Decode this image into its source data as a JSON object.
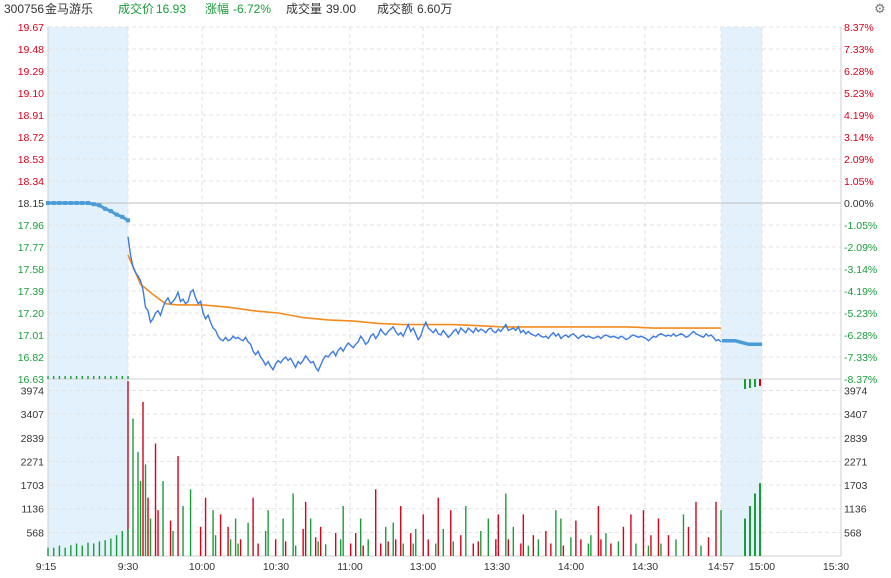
{
  "header": {
    "code": "300756",
    "name": "金马游乐",
    "price_label": "成交价",
    "price": "16.93",
    "change_label": "涨幅",
    "change": "-6.72%",
    "volume_label": "成交量",
    "volume": "39.00",
    "amount_label": "成交额",
    "amount": "6.60万"
  },
  "icons": {
    "settings": "gear-icon"
  },
  "colors": {
    "up": "#d9001b",
    "down": "#1a9c3a",
    "price_line": "#3d7be0",
    "avg_line": "#f28c1e",
    "auction_band": "#e3f1fd",
    "auction_line": "#4b9bd6",
    "grid": "#e2e2e2"
  },
  "chart_data": {
    "type": "line",
    "price_axis": {
      "ticks": [
        "19.67",
        "19.48",
        "19.29",
        "19.10",
        "18.91",
        "18.72",
        "18.53",
        "18.34",
        "18.15",
        "17.96",
        "17.77",
        "17.58",
        "17.39",
        "17.20",
        "17.01",
        "16.82",
        "16.63"
      ],
      "range": [
        16.63,
        19.67
      ],
      "prev_close": 18.15
    },
    "pct_axis": {
      "ticks": [
        "8.37%",
        "7.33%",
        "6.28%",
        "5.23%",
        "4.19%",
        "3.14%",
        "2.09%",
        "1.05%",
        "0.00%",
        "-1.05%",
        "-2.09%",
        "-3.14%",
        "-4.19%",
        "-5.23%",
        "-6.28%",
        "-7.33%",
        "-8.37%"
      ]
    },
    "volume_axis": {
      "ticks": [
        "3974",
        "3407",
        "2839",
        "2271",
        "1703",
        "1136",
        "568"
      ],
      "max": 4250
    },
    "time_axis": {
      "ticks": [
        "9:15",
        "9:30",
        "10:00",
        "10:30",
        "11:00",
        "13:00",
        "13:30",
        "14:00",
        "14:30",
        "14:57",
        "15:00",
        "15:30"
      ]
    },
    "series": [
      {
        "name": "price",
        "x": [
          0,
          1,
          2,
          3,
          4,
          5,
          6,
          7,
          8,
          9,
          10,
          11,
          12,
          13,
          14,
          15,
          16,
          17,
          18,
          19,
          20,
          21,
          22,
          23,
          24,
          25,
          26,
          27,
          28,
          29,
          30,
          31,
          32,
          33,
          34,
          35,
          36,
          37,
          38,
          39,
          40,
          41,
          42,
          43,
          44,
          45,
          46,
          47,
          48,
          49,
          50,
          51,
          52,
          53,
          54,
          55,
          56,
          57,
          58,
          59,
          60,
          61,
          62,
          63,
          64,
          65,
          66,
          67,
          68,
          69,
          70,
          71,
          72,
          73,
          74,
          75,
          76,
          77,
          78,
          79,
          80,
          81,
          82,
          83,
          84,
          85,
          86,
          87,
          88,
          89,
          90,
          91,
          92,
          93,
          94,
          95,
          96,
          97,
          98,
          99,
          100,
          101,
          102,
          103,
          104,
          105,
          106,
          107,
          108,
          109,
          110,
          111,
          112,
          113,
          114,
          115,
          116,
          117,
          118,
          119,
          120,
          121,
          122,
          123,
          124,
          125,
          126,
          127,
          128,
          129,
          130,
          131,
          132,
          133,
          134,
          135,
          136,
          137,
          138,
          139,
          140,
          141,
          142,
          143,
          144,
          145,
          146,
          147,
          148,
          149,
          150,
          151,
          152,
          153,
          154,
          155,
          156,
          157,
          158,
          159,
          160,
          161,
          162,
          163,
          164,
          165,
          166,
          167,
          168,
          169,
          170,
          171,
          172,
          173,
          174,
          175,
          176,
          177,
          178,
          179,
          180,
          181,
          182,
          183,
          184,
          185,
          186,
          187,
          188,
          189,
          190,
          191,
          192,
          193,
          194,
          195,
          196,
          197,
          198,
          199,
          200,
          201,
          202,
          203,
          204,
          205,
          206,
          207,
          208,
          209,
          210,
          211,
          212,
          213,
          214,
          215,
          216,
          217,
          218,
          219,
          220,
          221,
          222,
          223,
          224,
          225,
          226,
          227,
          228,
          229,
          230,
          231,
          232,
          233,
          234,
          235,
          236,
          237
        ],
        "y": [
          17.86,
          17.7,
          17.6,
          17.55,
          17.52,
          17.48,
          17.4,
          17.25,
          17.22,
          17.12,
          17.15,
          17.2,
          17.22,
          17.18,
          17.25,
          17.3,
          17.33,
          17.28,
          17.3,
          17.33,
          17.38,
          17.3,
          17.32,
          17.28,
          17.3,
          17.38,
          17.4,
          17.33,
          17.28,
          17.3,
          17.2,
          17.15,
          17.18,
          17.12,
          17.07,
          17.05,
          17.0,
          16.97,
          16.96,
          16.99,
          16.96,
          16.97,
          17.0,
          16.98,
          16.99,
          16.97,
          16.96,
          16.99,
          16.95,
          16.93,
          16.87,
          16.84,
          16.87,
          16.82,
          16.79,
          16.75,
          16.78,
          16.74,
          16.71,
          16.76,
          16.79,
          16.77,
          16.8,
          16.82,
          16.79,
          16.81,
          16.77,
          16.73,
          16.78,
          16.76,
          16.79,
          16.83,
          16.8,
          16.77,
          16.78,
          16.73,
          16.7,
          16.75,
          16.8,
          16.83,
          16.82,
          16.85,
          16.87,
          16.83,
          16.88,
          16.9,
          16.87,
          16.91,
          16.94,
          16.92,
          16.9,
          16.93,
          16.95,
          17.0,
          16.97,
          16.93,
          16.95,
          17.0,
          17.02,
          16.98,
          17.01,
          17.06,
          17.03,
          17.01,
          17.04,
          17.06,
          17.08,
          17.04,
          17.01,
          17.03,
          17.0,
          17.05,
          17.1,
          17.04,
          17.07,
          17.02,
          16.97,
          17.0,
          17.07,
          17.12,
          17.07,
          17.05,
          17.03,
          17.06,
          17.02,
          17.01,
          17.05,
          17.02,
          16.99,
          17.01,
          17.04,
          17.06,
          17.02,
          17.07,
          17.05,
          17.03,
          17.07,
          17.05,
          17.03,
          17.07,
          17.04,
          17.06,
          17.05,
          17.03,
          17.06,
          17.07,
          17.04,
          17.03,
          17.06,
          17.04,
          17.07,
          17.1,
          17.05,
          17.06,
          17.07,
          17.05,
          17.08,
          17.03,
          17.05,
          17.02,
          17.04,
          17.02,
          17.01,
          17.0,
          17.02,
          17.0,
          16.99,
          17.0,
          16.98,
          17.01,
          17.03,
          17.0,
          17.02,
          16.98,
          17.0,
          17.01,
          16.99,
          17.01,
          17.02,
          17.0,
          16.98,
          17.0,
          17.01,
          16.99,
          17.0,
          16.99,
          16.98,
          16.99,
          17.0,
          16.98,
          17.0,
          17.01,
          17.0,
          16.99,
          17.0,
          16.99,
          16.98,
          17.0,
          16.99,
          16.97,
          16.98,
          17.0,
          17.01,
          17.0,
          16.99,
          17.0,
          16.99,
          16.98,
          16.96,
          16.98,
          17.0,
          16.99,
          17.01,
          17.02,
          17.01,
          17.0,
          17.01,
          17.0,
          17.02,
          17.0,
          17.01,
          17.02,
          17.01,
          16.99,
          17.0,
          17.02,
          17.04,
          17.02,
          17.01,
          17.0,
          16.99,
          17.02,
          17.0,
          17.01,
          16.99,
          16.96,
          16.97,
          16.95
        ]
      },
      {
        "name": "average",
        "x": [
          0,
          5,
          10,
          15,
          20,
          30,
          40,
          50,
          60,
          70,
          80,
          90,
          100,
          110,
          120,
          130,
          140,
          150,
          160,
          170,
          180,
          190,
          200,
          210,
          220,
          230,
          237
        ],
        "y": [
          17.7,
          17.45,
          17.36,
          17.28,
          17.27,
          17.27,
          17.25,
          17.22,
          17.2,
          17.16,
          17.14,
          17.13,
          17.11,
          17.1,
          17.1,
          17.1,
          17.09,
          17.08,
          17.08,
          17.08,
          17.08,
          17.08,
          17.08,
          17.07,
          17.07,
          17.07,
          17.07
        ]
      },
      {
        "name": "pre_auction",
        "x": [
          0,
          1,
          2,
          3,
          4,
          5,
          6,
          7,
          8,
          9,
          10,
          11,
          12,
          13,
          14
        ],
        "y": [
          18.15,
          18.15,
          18.15,
          18.15,
          18.15,
          18.15,
          18.15,
          18.15,
          18.14,
          18.13,
          18.1,
          18.08,
          18.05,
          18.03,
          18.0
        ]
      },
      {
        "name": "close_auction",
        "x": [
          0,
          1,
          2,
          3
        ],
        "y": [
          16.96,
          16.96,
          16.93,
          16.93
        ]
      }
    ],
    "volume": {
      "x": [
        0,
        2,
        4,
        5,
        6,
        7,
        8,
        9,
        11,
        12,
        14,
        17,
        18,
        20,
        22,
        25,
        29,
        31,
        34,
        35,
        37,
        40,
        41,
        43,
        44,
        45,
        48,
        50,
        52,
        55,
        56,
        59,
        62,
        63,
        66,
        67,
        70,
        71,
        73,
        75,
        76,
        77,
        79,
        83,
        85,
        86,
        89,
        91,
        93,
        94,
        96,
        99,
        101,
        103,
        104,
        106,
        107,
        109,
        110,
        113,
        114,
        115,
        118,
        120,
        123,
        124,
        126,
        129,
        130,
        133,
        135,
        138,
        140,
        141,
        144,
        147,
        148,
        151,
        152,
        154,
        157,
        158,
        160,
        162,
        164,
        167,
        169,
        171,
        173,
        174,
        177,
        179,
        181,
        184,
        185,
        188,
        189,
        191,
        193,
        196,
        198,
        201,
        203,
        206,
        208,
        209,
        212,
        213,
        216,
        219,
        222,
        224,
        227,
        229,
        232,
        235,
        237
      ],
      "values": [
        4200,
        3300,
        2500,
        1800,
        3700,
        2200,
        1400,
        900,
        2700,
        1100,
        1800,
        850,
        600,
        2400,
        1200,
        1600,
        700,
        1400,
        1100,
        500,
        1000,
        700,
        400,
        900,
        300,
        400,
        800,
        1400,
        300,
        600,
        1100,
        400,
        900,
        350,
        1500,
        250,
        650,
        1300,
        900,
        450,
        350,
        700,
        280,
        550,
        400,
        1200,
        300,
        550,
        900,
        250,
        400,
        1600,
        300,
        700,
        350,
        800,
        400,
        1200,
        300,
        550,
        300,
        650,
        1000,
        400,
        300,
        1400,
        650,
        1100,
        350,
        500,
        1200,
        300,
        350,
        600,
        900,
        400,
        1000,
        1500,
        400,
        700,
        300,
        1000,
        250,
        500,
        400,
        600,
        300,
        1100,
        900,
        250,
        450,
        850,
        400,
        300,
        500,
        1200,
        400,
        550,
        300,
        350,
        700,
        1000,
        300,
        1100,
        250,
        500,
        900,
        300,
        500,
        400,
        1000,
        700,
        1300,
        250,
        450,
        1300,
        1100
      ],
      "colors": [
        "up",
        "down",
        "down",
        "down",
        "up",
        "down",
        "up",
        "down",
        "up",
        "up",
        "down",
        "up",
        "down",
        "up",
        "down",
        "down",
        "up",
        "up",
        "down",
        "down",
        "up",
        "up",
        "down",
        "down",
        "down",
        "up",
        "down",
        "up",
        "up",
        "down",
        "down",
        "up",
        "down",
        "up",
        "down",
        "down",
        "up",
        "up",
        "down",
        "up",
        "down",
        "up",
        "down",
        "up",
        "down",
        "down",
        "up",
        "up",
        "down",
        "up",
        "down",
        "up",
        "up",
        "down",
        "up",
        "down",
        "up",
        "up",
        "down",
        "up",
        "down",
        "down",
        "up",
        "up",
        "down",
        "up",
        "down",
        "up",
        "down",
        "up",
        "down",
        "up",
        "up",
        "down",
        "down",
        "up",
        "up",
        "down",
        "up",
        "down",
        "up",
        "up",
        "down",
        "up",
        "down",
        "up",
        "up",
        "down",
        "down",
        "up",
        "down",
        "up",
        "up",
        "down",
        "down",
        "up",
        "up",
        "down",
        "up",
        "down",
        "up",
        "up",
        "down",
        "up",
        "down",
        "up",
        "up",
        "down",
        "up",
        "down",
        "down",
        "up",
        "up",
        "down",
        "up",
        "up",
        "down"
      ],
      "pre_auction_values": [
        200,
        200,
        250,
        200,
        260,
        300,
        250,
        320,
        300,
        350,
        380,
        420,
        500,
        600,
        650
      ],
      "close_auction_values": [
        900,
        1200,
        1500,
        1750
      ]
    }
  }
}
